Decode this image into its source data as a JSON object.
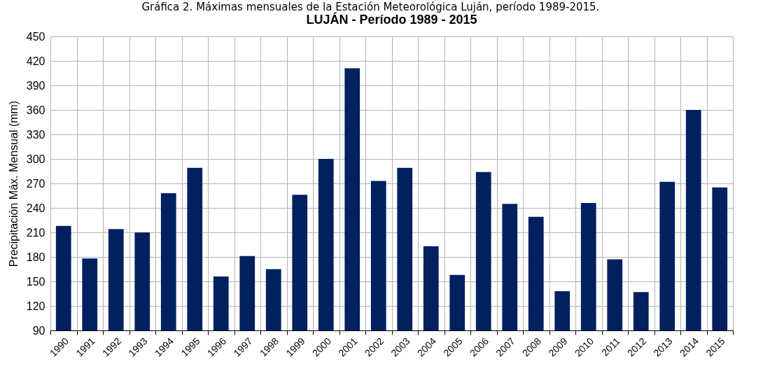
{
  "chart_data": {
    "type": "bar",
    "title": "LUJÁN - Período 1989 - 2015",
    "annotations": [
      "Gráfica 2. Máximas mensuales de la Estación Meteorológica Luján, período 1989-2015."
    ],
    "ylabel": "Precipitación Máx. Mensual (mm)",
    "categories": [
      "1990",
      "1991",
      "1992",
      "1993",
      "1994",
      "1995",
      "1996",
      "1997",
      "1998",
      "1999",
      "2000",
      "2001",
      "2002",
      "2003",
      "2004",
      "2005",
      "2006",
      "2007",
      "2008",
      "2009",
      "2010",
      "2011",
      "2012",
      "2013",
      "2014",
      "2015"
    ],
    "values": [
      218,
      178,
      214,
      210,
      258,
      289,
      156,
      181,
      165,
      256,
      300,
      411,
      273,
      289,
      193,
      158,
      284,
      245,
      229,
      138,
      246,
      177,
      137,
      272,
      360,
      265
    ],
    "color": "#002060",
    "ylim": [
      90,
      450
    ],
    "yticks": [
      90,
      120,
      150,
      180,
      210,
      240,
      270,
      300,
      330,
      360,
      390,
      420,
      450
    ],
    "grid": true
  }
}
